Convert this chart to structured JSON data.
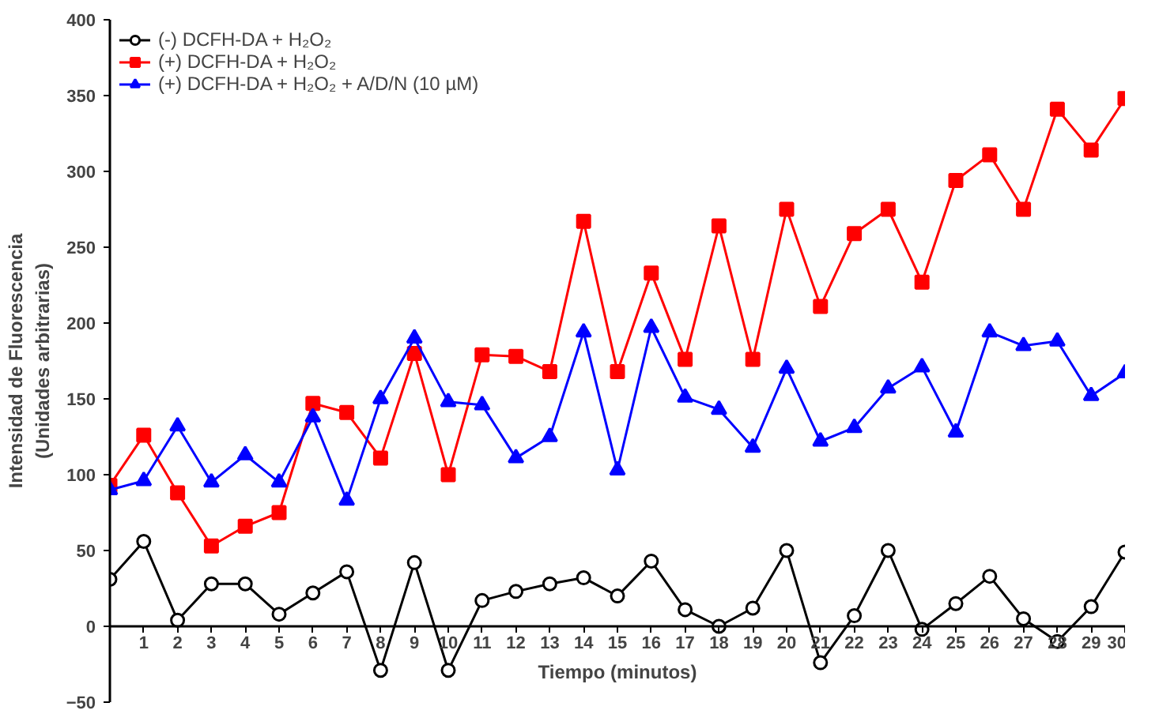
{
  "chart_data": {
    "type": "line",
    "xlabel": "Tiempo (minutos)",
    "ylabel": "Intensidad de Fluorescencia\n(Unidades arbitrarias)",
    "x": [
      0,
      1,
      2,
      3,
      4,
      5,
      6,
      7,
      8,
      9,
      10,
      11,
      12,
      13,
      14,
      15,
      16,
      17,
      18,
      19,
      20,
      21,
      22,
      23,
      24,
      25,
      26,
      27,
      28,
      29,
      30
    ],
    "xlim": [
      0,
      30
    ],
    "xticks": [
      1,
      2,
      3,
      4,
      5,
      6,
      7,
      8,
      9,
      10,
      11,
      12,
      13,
      14,
      15,
      16,
      17,
      18,
      19,
      20,
      21,
      22,
      23,
      24,
      25,
      26,
      27,
      28,
      29,
      30
    ],
    "ylim": [
      -50,
      400
    ],
    "yticks": [
      -50,
      0,
      50,
      100,
      150,
      200,
      250,
      300,
      350,
      400
    ],
    "grid": false,
    "legend": "top left",
    "series": [
      {
        "name": "(-) DCFH-DA + H₂O₂",
        "color": "#000000",
        "marker": "circle",
        "values": [
          31,
          56,
          4,
          28,
          28,
          8,
          22,
          36,
          -29,
          42,
          -29,
          17,
          23,
          28,
          32,
          20,
          43,
          11,
          0,
          12,
          50,
          -24,
          7,
          50,
          -2,
          15,
          33,
          5,
          -10,
          13,
          49
        ]
      },
      {
        "name": "(+) DCFH-DA + H₂O₂",
        "color": "#ff0000",
        "marker": "square",
        "values": [
          93,
          126,
          88,
          53,
          66,
          75,
          147,
          141,
          111,
          180,
          100,
          179,
          178,
          168,
          267,
          168,
          233,
          176,
          264,
          176,
          275,
          211,
          259,
          275,
          227,
          294,
          311,
          275,
          341,
          314,
          348
        ]
      },
      {
        "name": "(+) DCFH-DA + H₂O₂ + A/D/N (10 µM)",
        "color": "#0000ff",
        "marker": "triangle",
        "values": [
          90,
          96,
          132,
          95,
          113,
          95,
          138,
          83,
          150,
          190,
          148,
          146,
          111,
          125,
          194,
          103,
          197,
          151,
          143,
          118,
          170,
          122,
          131,
          157,
          171,
          128,
          194,
          185,
          188,
          152,
          167
        ]
      }
    ]
  }
}
